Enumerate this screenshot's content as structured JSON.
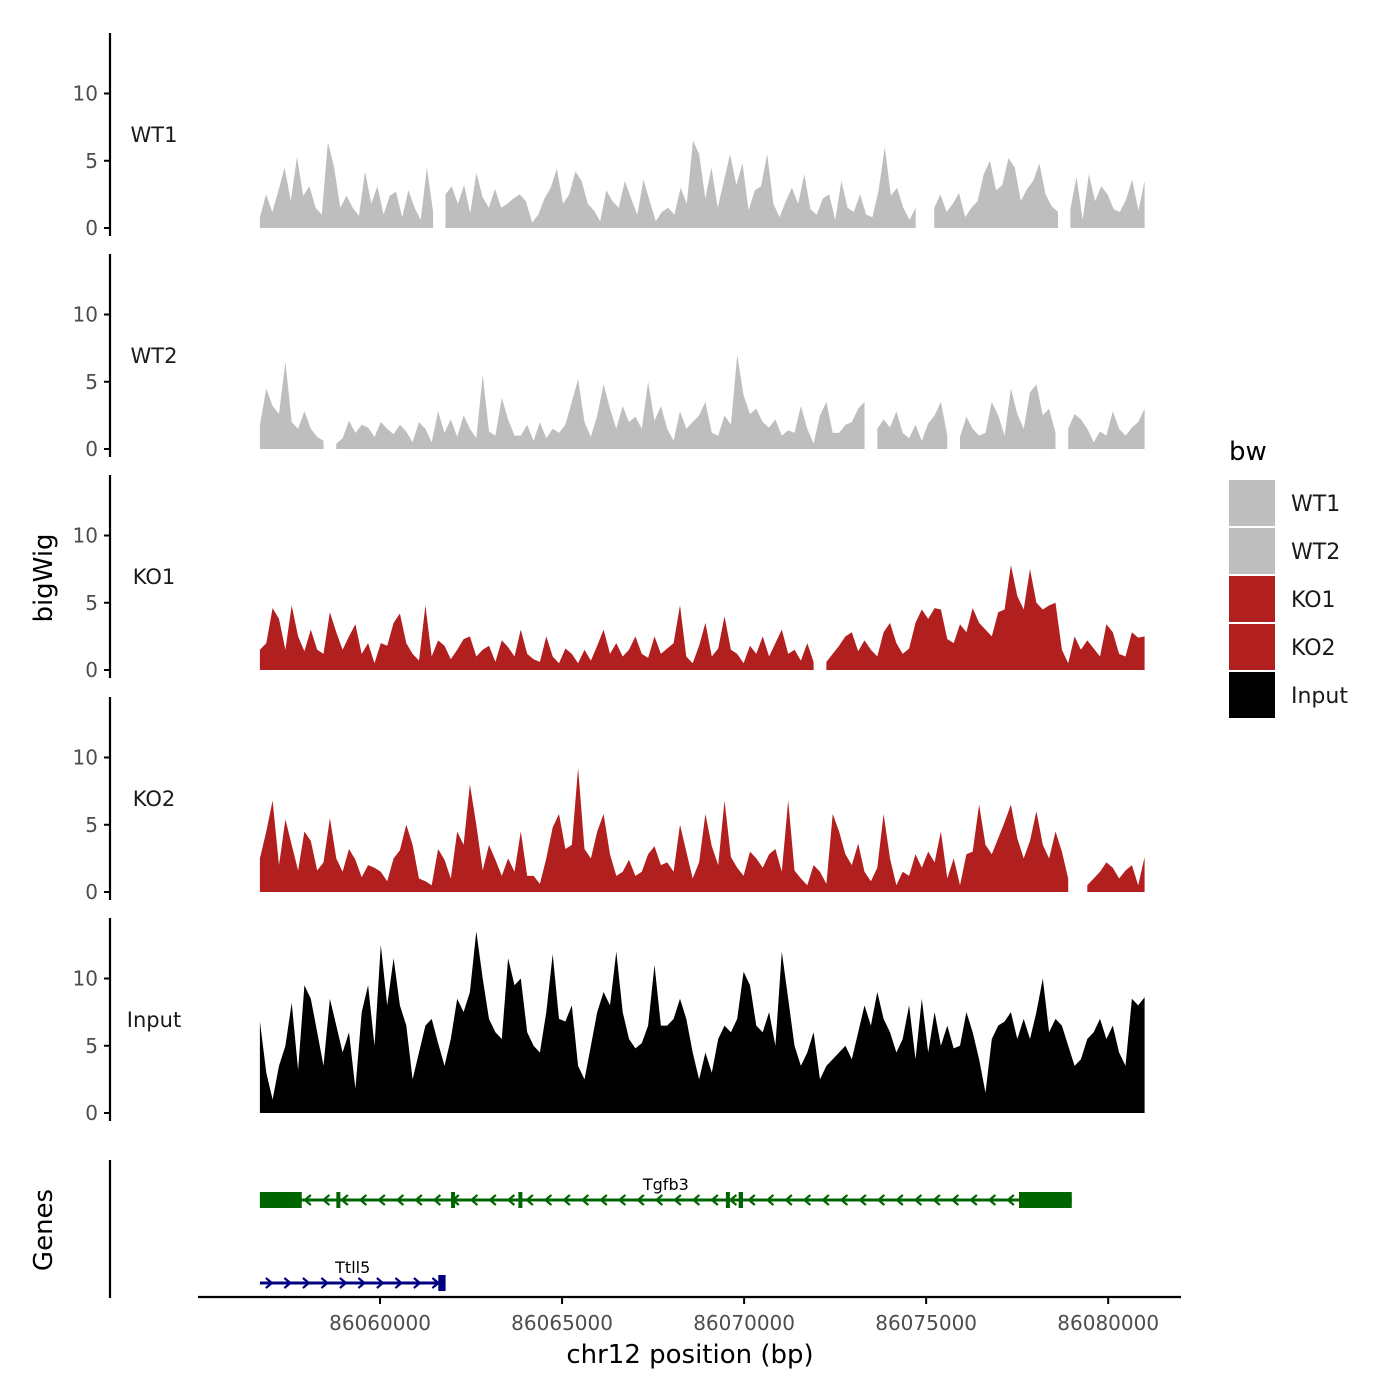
{
  "colors": {
    "wt": "#bebebe",
    "ko": "#b21f1f",
    "input": "#000000",
    "gene_minus": "#006400",
    "gene_plus": "#000080",
    "axis": "#000000"
  },
  "chart_data": {
    "type": "area",
    "title": "",
    "xlabel": "chr12 position (bp)",
    "ylabel": "bigWig",
    "genes_label": "Genes",
    "xlim": [
      86055000,
      86082000
    ],
    "x_ticks": [
      86060000,
      86065000,
      86070000,
      86075000,
      86080000
    ],
    "x_tick_labels": [
      "86060000",
      "86065000",
      "86070000",
      "86075000",
      "86080000"
    ],
    "ylim": [
      0,
      14.5
    ],
    "y_ticks": [
      0,
      5,
      10
    ],
    "y_tick_labels": [
      "0",
      "5",
      "10"
    ],
    "data_range": [
      86056700,
      86081000
    ],
    "legend": {
      "title": "bw",
      "entries": [
        {
          "label": "WT1",
          "color": "#bebebe"
        },
        {
          "label": "WT2",
          "color": "#bebebe"
        },
        {
          "label": "KO1",
          "color": "#b21f1f"
        },
        {
          "label": "KO2",
          "color": "#b21f1f"
        },
        {
          "label": "Input",
          "color": "#000000"
        }
      ]
    },
    "tracks": [
      {
        "name": "WT1",
        "color": "#bebebe",
        "values": [
          0.8,
          2.5,
          1.2,
          2.8,
          4.5,
          2.0,
          5.3,
          2.4,
          3.1,
          1.5,
          1.0,
          6.4,
          4.5,
          1.5,
          2.4,
          1.5,
          0.9,
          4.2,
          1.8,
          3.1,
          1.0,
          2.4,
          2.7,
          0.8,
          2.8,
          1.5,
          0.6,
          4.5,
          1.2,
          0.0,
          2.5,
          3.1,
          1.8,
          3.2,
          1.1,
          4.1,
          2.3,
          1.5,
          2.9,
          1.5,
          1.8,
          2.2,
          2.5,
          2.0,
          0.4,
          1.0,
          2.2,
          3.0,
          4.4,
          1.8,
          2.5,
          4.2,
          3.5,
          1.8,
          1.3,
          0.5,
          2.8,
          2.0,
          1.5,
          3.5,
          2.2,
          1.0,
          3.6,
          2.0,
          0.5,
          1.2,
          1.5,
          1.0,
          3.0,
          1.8,
          6.5,
          5.5,
          2.2,
          4.5,
          1.5,
          3.5,
          5.5,
          3.2,
          4.8,
          1.3,
          2.8,
          3.1,
          5.5,
          1.8,
          0.8,
          2.0,
          3.0,
          1.8,
          4.0,
          1.4,
          1.0,
          2.2,
          2.5,
          0.6,
          3.5,
          1.5,
          1.2,
          2.5,
          1.0,
          0.8,
          2.8,
          6.0,
          2.4,
          3.0,
          1.5,
          0.6,
          1.5,
          0.0,
          0.0,
          1.5,
          2.5,
          1.2,
          1.8,
          2.6,
          0.8,
          1.5,
          2.0,
          4.0,
          5.0,
          2.8,
          3.2,
          5.2,
          4.5,
          2.0,
          2.9,
          3.5,
          4.8,
          2.5,
          1.6,
          1.2,
          0.0,
          1.4,
          3.8,
          0.6,
          4.0,
          2.0,
          3.1,
          2.5,
          1.4,
          1.2,
          2.1,
          3.6,
          1.3,
          3.5
        ]
      },
      {
        "name": "WT2",
        "color": "#bebebe",
        "values": [
          1.8,
          4.5,
          3.2,
          2.6,
          6.5,
          2.0,
          1.5,
          2.8,
          1.5,
          0.9,
          0.6,
          0.0,
          0.4,
          0.8,
          2.1,
          1.2,
          1.8,
          1.6,
          0.9,
          2.0,
          1.5,
          1.1,
          1.8,
          1.3,
          0.5,
          2.0,
          1.5,
          0.5,
          2.8,
          1.2,
          2.2,
          0.9,
          2.5,
          1.5,
          0.8,
          5.5,
          1.3,
          1.0,
          3.8,
          2.2,
          1.0,
          1.0,
          1.8,
          0.6,
          2.0,
          0.8,
          1.5,
          1.2,
          1.8,
          3.5,
          5.2,
          2.0,
          0.9,
          2.5,
          4.8,
          3.0,
          1.5,
          3.2,
          2.0,
          2.4,
          1.5,
          5.0,
          2.1,
          3.2,
          1.5,
          0.6,
          2.8,
          1.5,
          2.0,
          2.5,
          3.5,
          1.2,
          1.0,
          2.5,
          1.8,
          7.0,
          4.0,
          2.6,
          3.0,
          2.0,
          1.6,
          2.2,
          1.0,
          1.4,
          1.2,
          3.2,
          1.5,
          0.4,
          2.5,
          3.5,
          1.2,
          1.2,
          1.8,
          2.0,
          3.0,
          3.5,
          0.0,
          1.5,
          2.2,
          1.6,
          2.8,
          1.2,
          0.8,
          1.8,
          0.6,
          1.9,
          2.5,
          3.5,
          1.0,
          0.0,
          0.9,
          2.4,
          1.5,
          1.0,
          1.2,
          3.5,
          2.5,
          1.0,
          4.5,
          2.6,
          1.5,
          4.2,
          4.8,
          2.5,
          3.0,
          1.2,
          0.0,
          1.5,
          2.6,
          2.2,
          1.5,
          0.5,
          1.3,
          1.0,
          2.8,
          1.5,
          1.0,
          1.6,
          2.0,
          3.0
        ]
      },
      {
        "name": "KO1",
        "color": "#b21f1f",
        "values": [
          1.5,
          2.0,
          4.6,
          3.8,
          1.5,
          4.8,
          2.5,
          1.4,
          3.0,
          1.5,
          1.2,
          4.3,
          2.8,
          1.5,
          2.5,
          3.4,
          1.2,
          2.0,
          0.5,
          2.0,
          1.8,
          3.5,
          4.2,
          2.0,
          1.2,
          0.7,
          4.8,
          1.0,
          2.2,
          1.8,
          0.8,
          1.5,
          2.3,
          2.5,
          1.0,
          1.5,
          1.8,
          0.6,
          2.2,
          1.7,
          1.0,
          3.0,
          1.2,
          0.8,
          0.6,
          2.5,
          1.0,
          0.5,
          1.6,
          1.2,
          0.5,
          1.5,
          0.7,
          1.8,
          3.0,
          1.2,
          2.0,
          1.0,
          1.5,
          2.5,
          1.2,
          0.9,
          2.5,
          1.2,
          1.6,
          2.0,
          4.8,
          1.0,
          0.5,
          1.8,
          3.5,
          1.0,
          1.6,
          4.0,
          1.5,
          1.2,
          0.5,
          1.8,
          1.2,
          2.5,
          1.0,
          2.0,
          3.0,
          1.2,
          1.5,
          0.7,
          2.0,
          0.6,
          0.0,
          0.6,
          1.2,
          1.8,
          2.5,
          2.8,
          1.4,
          2.2,
          1.5,
          1.0,
          2.8,
          3.5,
          2.0,
          1.2,
          1.6,
          3.5,
          4.5,
          3.8,
          4.6,
          4.5,
          2.3,
          2.0,
          3.4,
          2.8,
          4.6,
          3.5,
          3.0,
          2.5,
          4.3,
          4.5,
          7.8,
          5.5,
          4.5,
          7.5,
          5.0,
          4.5,
          4.8,
          5.0,
          1.5,
          0.5,
          2.5,
          1.5,
          2.2,
          1.6,
          1.0,
          3.4,
          2.8,
          1.2,
          1.0,
          2.8,
          2.4,
          2.5
        ]
      },
      {
        "name": "KO2",
        "color": "#b21f1f",
        "values": [
          2.5,
          4.5,
          6.8,
          2.0,
          5.4,
          3.5,
          1.6,
          4.5,
          3.8,
          1.6,
          2.2,
          5.5,
          2.5,
          1.5,
          3.2,
          2.4,
          1.1,
          2.0,
          1.8,
          1.5,
          0.8,
          2.5,
          3.1,
          5.0,
          3.5,
          1.0,
          0.8,
          0.5,
          3.2,
          2.4,
          1.0,
          4.5,
          3.5,
          8.0,
          5.0,
          1.6,
          3.5,
          2.4,
          1.2,
          2.5,
          1.5,
          4.5,
          1.2,
          1.2,
          0.6,
          2.5,
          4.8,
          5.8,
          3.2,
          3.5,
          9.2,
          3.2,
          2.5,
          4.5,
          5.8,
          2.8,
          1.2,
          1.5,
          2.4,
          1.2,
          1.5,
          2.8,
          3.4,
          2.0,
          2.2,
          1.5,
          5.0,
          3.0,
          1.0,
          2.2,
          5.8,
          3.4,
          2.0,
          6.8,
          2.6,
          1.8,
          1.2,
          3.0,
          2.5,
          1.8,
          2.8,
          3.2,
          1.5,
          6.8,
          1.6,
          1.0,
          0.5,
          2.0,
          1.5,
          0.6,
          5.8,
          4.5,
          2.8,
          2.0,
          3.6,
          1.5,
          0.8,
          1.8,
          5.8,
          2.5,
          0.5,
          1.5,
          1.2,
          2.8,
          1.8,
          3.0,
          2.2,
          4.5,
          1.0,
          2.5,
          0.5,
          2.8,
          3.0,
          6.5,
          3.5,
          2.8,
          4.0,
          5.2,
          6.5,
          4.0,
          2.5,
          3.8,
          6.0,
          3.5,
          2.5,
          4.5,
          3.0,
          1.0,
          0.0,
          0.0,
          0.5,
          1.0,
          1.5,
          2.2,
          1.8,
          1.0,
          1.6,
          2.0,
          0.5,
          2.6
        ]
      },
      {
        "name": "Input",
        "color": "#000000",
        "values": [
          6.8,
          3.0,
          1.0,
          3.5,
          5.0,
          8.2,
          3.2,
          9.5,
          8.5,
          6.0,
          3.5,
          8.5,
          6.5,
          4.5,
          6.0,
          1.8,
          7.5,
          9.5,
          5.0,
          12.5,
          8.0,
          11.5,
          8.0,
          6.5,
          2.5,
          4.5,
          6.5,
          7.0,
          5.2,
          3.5,
          5.5,
          8.5,
          7.5,
          9.0,
          13.5,
          10.0,
          7.0,
          6.0,
          5.5,
          11.5,
          9.5,
          10.0,
          6.0,
          5.0,
          4.5,
          7.5,
          11.8,
          7.0,
          6.8,
          8.0,
          3.5,
          2.5,
          5.0,
          7.5,
          9.0,
          8.0,
          12.0,
          7.5,
          5.5,
          4.8,
          5.2,
          6.5,
          11.0,
          6.5,
          6.5,
          7.0,
          8.5,
          7.0,
          4.5,
          2.5,
          4.5,
          3.0,
          5.5,
          6.5,
          6.0,
          7.0,
          10.5,
          9.5,
          6.5,
          6.0,
          7.5,
          5.0,
          12.0,
          8.5,
          5.0,
          3.5,
          4.5,
          6.0,
          2.5,
          3.5,
          4.0,
          4.5,
          5.0,
          4.0,
          6.0,
          8.0,
          6.5,
          9.0,
          7.0,
          6.0,
          4.5,
          5.5,
          8.0,
          4.0,
          8.5,
          4.5,
          7.5,
          5.0,
          6.5,
          4.8,
          5.0,
          7.5,
          6.0,
          4.0,
          1.5,
          5.5,
          6.5,
          6.8,
          7.5,
          5.5,
          7.0,
          5.5,
          7.5,
          10.0,
          6.0,
          7.0,
          6.5,
          5.0,
          3.5,
          4.0,
          5.5,
          6.0,
          7.0,
          5.5,
          6.5,
          4.5,
          3.5,
          8.5,
          8.0,
          8.6
        ]
      }
    ],
    "genes": [
      {
        "name": "Tgfb3",
        "strand": "-",
        "start": 86056700,
        "end": 86079000,
        "exons": [
          [
            86056700,
            86057850
          ],
          [
            86058800,
            86058900
          ],
          [
            86061950,
            86062050
          ],
          [
            86063800,
            86063880
          ],
          [
            86069500,
            86069580
          ],
          [
            86069850,
            86069970
          ],
          [
            86077550,
            86079000
          ]
        ]
      },
      {
        "name": "Ttll5",
        "strand": "+",
        "start": 86056700,
        "end": 86061800,
        "exons": [
          [
            86061600,
            86061800
          ]
        ]
      }
    ]
  }
}
